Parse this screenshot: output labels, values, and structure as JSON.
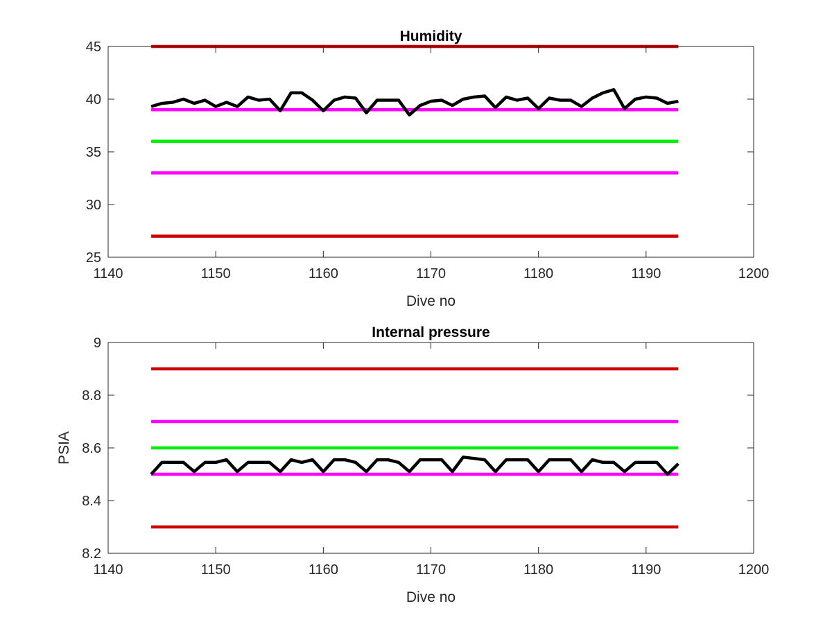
{
  "chart_data": [
    {
      "type": "line",
      "title": "Humidity",
      "xlabel": "Dive no",
      "ylabel": "",
      "xlim": [
        1140,
        1200
      ],
      "ylim": [
        25,
        45
      ],
      "xticks": [
        1140,
        1150,
        1160,
        1170,
        1180,
        1190,
        1200
      ],
      "yticks": [
        25,
        30,
        35,
        40,
        45
      ],
      "grid": false,
      "series": [
        {
          "color": "#cc0000",
          "x": [
            1144,
            1193
          ],
          "y": [
            45,
            45
          ]
        },
        {
          "color": "#ff00ff",
          "x": [
            1144,
            1193
          ],
          "y": [
            39,
            39
          ]
        },
        {
          "color": "#00ee00",
          "x": [
            1144,
            1193
          ],
          "y": [
            36,
            36
          ]
        },
        {
          "color": "#ff00ff",
          "x": [
            1144,
            1193
          ],
          "y": [
            33,
            33
          ]
        },
        {
          "color": "#cc0000",
          "x": [
            1144,
            1193
          ],
          "y": [
            27,
            27
          ]
        },
        {
          "color": "#000000",
          "x": [
            1144,
            1145,
            1146,
            1147,
            1148,
            1149,
            1150,
            1151,
            1152,
            1153,
            1154,
            1155,
            1156,
            1157,
            1158,
            1159,
            1160,
            1161,
            1162,
            1163,
            1164,
            1165,
            1166,
            1167,
            1168,
            1169,
            1170,
            1171,
            1172,
            1173,
            1174,
            1175,
            1176,
            1177,
            1178,
            1179,
            1180,
            1181,
            1182,
            1183,
            1184,
            1185,
            1186,
            1187,
            1188,
            1189,
            1190,
            1191,
            1192,
            1193
          ],
          "y": [
            39.3,
            39.6,
            39.7,
            40.0,
            39.6,
            39.9,
            39.3,
            39.7,
            39.3,
            40.2,
            39.9,
            40.0,
            38.9,
            40.6,
            40.6,
            39.9,
            38.9,
            39.9,
            40.2,
            40.1,
            38.7,
            39.9,
            39.9,
            39.9,
            38.5,
            39.4,
            39.8,
            39.9,
            39.4,
            40.0,
            40.2,
            40.3,
            39.2,
            40.2,
            39.9,
            40.1,
            39.1,
            40.1,
            39.9,
            39.9,
            39.3,
            40.1,
            40.6,
            40.9,
            39.1,
            40.0,
            40.2,
            40.1,
            39.6,
            39.8
          ]
        }
      ]
    },
    {
      "type": "line",
      "title": "Internal pressure",
      "xlabel": "Dive no",
      "ylabel": "PSIA",
      "xlim": [
        1140,
        1200
      ],
      "ylim": [
        8.2,
        9.0
      ],
      "xticks": [
        1140,
        1150,
        1160,
        1170,
        1180,
        1190,
        1200
      ],
      "yticks": [
        8.2,
        8.4,
        8.6,
        8.8,
        9.0
      ],
      "ytick_labels": [
        "8.2",
        "8.4",
        "8.6",
        "8.8",
        "9"
      ],
      "grid": false,
      "series": [
        {
          "color": "#cc0000",
          "x": [
            1144,
            1193
          ],
          "y": [
            8.9,
            8.9
          ]
        },
        {
          "color": "#ff00ff",
          "x": [
            1144,
            1193
          ],
          "y": [
            8.7,
            8.7
          ]
        },
        {
          "color": "#00ee00",
          "x": [
            1144,
            1193
          ],
          "y": [
            8.6,
            8.6
          ]
        },
        {
          "color": "#ff00ff",
          "x": [
            1144,
            1193
          ],
          "y": [
            8.5,
            8.5
          ]
        },
        {
          "color": "#cc0000",
          "x": [
            1144,
            1193
          ],
          "y": [
            8.3,
            8.3
          ]
        },
        {
          "color": "#000000",
          "x": [
            1144,
            1145,
            1146,
            1147,
            1148,
            1149,
            1150,
            1151,
            1152,
            1153,
            1154,
            1155,
            1156,
            1157,
            1158,
            1159,
            1160,
            1161,
            1162,
            1163,
            1164,
            1165,
            1166,
            1167,
            1168,
            1169,
            1170,
            1171,
            1172,
            1173,
            1174,
            1175,
            1176,
            1177,
            1178,
            1179,
            1180,
            1181,
            1182,
            1183,
            1184,
            1185,
            1186,
            1187,
            1188,
            1189,
            1190,
            1191,
            1192,
            1193
          ],
          "y": [
            8.5,
            8.545,
            8.545,
            8.545,
            8.51,
            8.545,
            8.545,
            8.555,
            8.51,
            8.545,
            8.545,
            8.545,
            8.51,
            8.555,
            8.545,
            8.555,
            8.51,
            8.555,
            8.555,
            8.545,
            8.51,
            8.555,
            8.555,
            8.545,
            8.51,
            8.555,
            8.555,
            8.555,
            8.51,
            8.565,
            8.56,
            8.555,
            8.51,
            8.555,
            8.555,
            8.555,
            8.51,
            8.555,
            8.555,
            8.555,
            8.51,
            8.555,
            8.545,
            8.545,
            8.51,
            8.545,
            8.545,
            8.545,
            8.5,
            8.54
          ]
        }
      ]
    }
  ]
}
